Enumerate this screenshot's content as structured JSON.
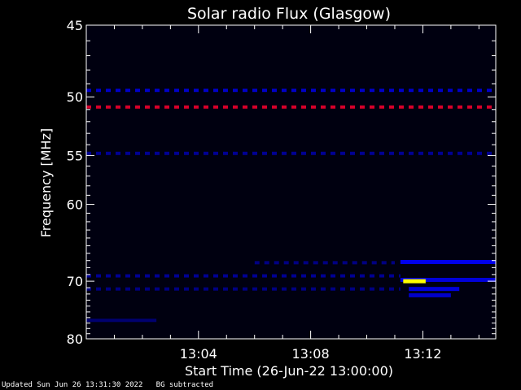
{
  "chart_data": {
    "type": "heatmap",
    "title": "Solar radio Flux (Glasgow)",
    "xlabel": "Start Time (26-Jun-22 13:00:00)",
    "ylabel": "Frequency [MHz]",
    "x_unit": "minutes after 13:00:00",
    "xlim": [
      0,
      14.6
    ],
    "ylim": [
      80,
      45
    ],
    "y_scale": "reciprocal",
    "x_ticks": [
      {
        "value": 4,
        "label": "13:04"
      },
      {
        "value": 8,
        "label": "13:08"
      },
      {
        "value": 12,
        "label": "13:12"
      }
    ],
    "y_ticks": [
      {
        "value": 45,
        "label": "45"
      },
      {
        "value": 50,
        "label": "50"
      },
      {
        "value": 55,
        "label": "55"
      },
      {
        "value": 60,
        "label": "60"
      },
      {
        "value": 70,
        "label": "70"
      },
      {
        "value": 80,
        "label": "80"
      }
    ],
    "grid": false,
    "colormap": [
      "#000010",
      "#0000ff",
      "#ff0000",
      "#ffff00"
    ],
    "features": [
      {
        "kind": "band",
        "freq_mhz": 49.5,
        "t_start": 0,
        "t_end": 14.6,
        "intensity": 0.45,
        "dashed": true
      },
      {
        "kind": "band",
        "freq_mhz": 50.8,
        "t_start": 0,
        "t_end": 14.6,
        "intensity": 0.85,
        "dashed": true
      },
      {
        "kind": "band",
        "freq_mhz": 54.8,
        "t_start": 0,
        "t_end": 14.6,
        "intensity": 0.3,
        "dashed": true
      },
      {
        "kind": "band",
        "freq_mhz": 67.3,
        "t_start": 6,
        "t_end": 11,
        "intensity": 0.25,
        "dashed": true
      },
      {
        "kind": "band",
        "freq_mhz": 69.2,
        "t_start": 0,
        "t_end": 11.2,
        "intensity": 0.3,
        "dashed": true
      },
      {
        "kind": "band",
        "freq_mhz": 71.2,
        "t_start": 0,
        "t_end": 11.2,
        "intensity": 0.25,
        "dashed": true
      },
      {
        "kind": "band",
        "freq_mhz": 76.5,
        "t_start": 0,
        "t_end": 2.5,
        "intensity": 0.2,
        "dashed": false
      },
      {
        "kind": "burst",
        "freq_mhz": 67.2,
        "t_start": 11.2,
        "t_end": 14.6,
        "intensity": 0.55
      },
      {
        "kind": "burst",
        "freq_mhz": 69.8,
        "t_start": 11.2,
        "t_end": 14.6,
        "intensity": 0.5
      },
      {
        "kind": "burst",
        "freq_mhz": 70.0,
        "t_start": 11.3,
        "t_end": 12.1,
        "intensity": 1.0
      },
      {
        "kind": "burst",
        "freq_mhz": 71.2,
        "t_start": 11.5,
        "t_end": 13.3,
        "intensity": 0.5
      },
      {
        "kind": "burst",
        "freq_mhz": 72.2,
        "t_start": 11.5,
        "t_end": 13.0,
        "intensity": 0.45
      }
    ]
  },
  "footer": {
    "updated": "Updated Sun Jun 26 13:31:30 2022",
    "bg_note": "BG subtracted"
  }
}
